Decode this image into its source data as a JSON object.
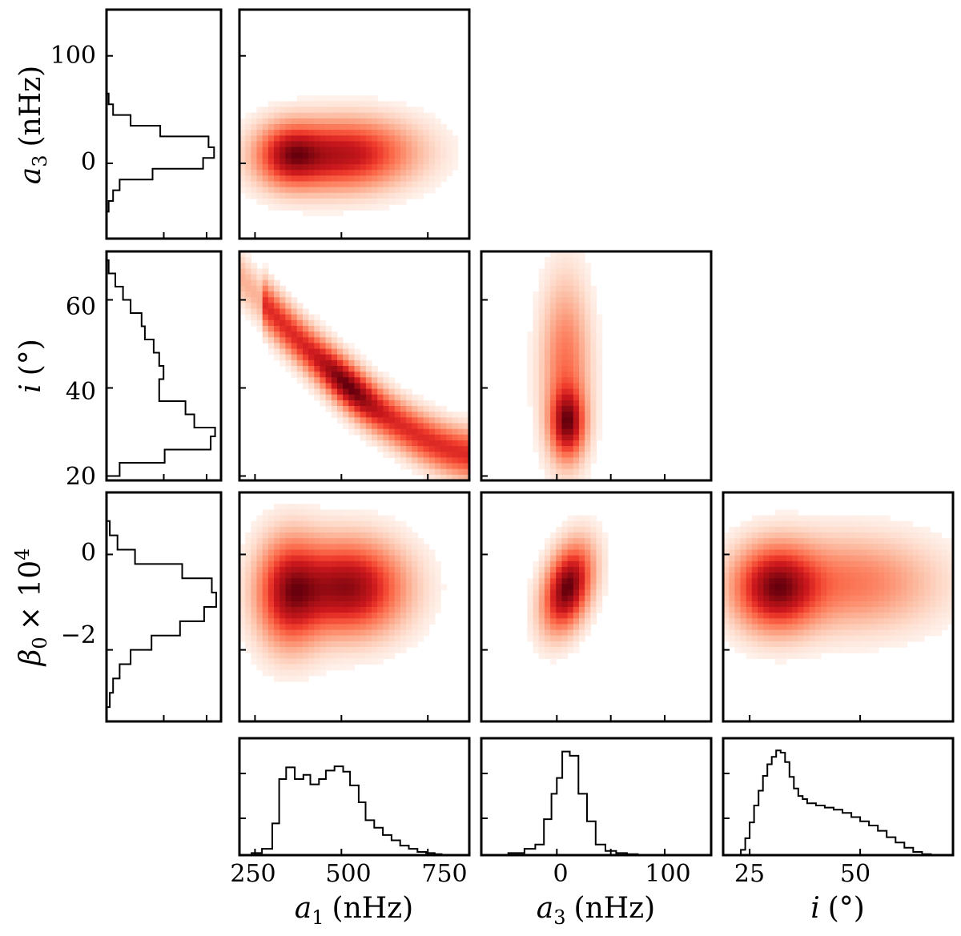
{
  "chart_data": {
    "type": "corner",
    "parameters": [
      {
        "label": "a",
        "sub": "1",
        "unit": "(nHz)",
        "range": [
          205,
          870
        ],
        "ticks": [
          250,
          500,
          750
        ]
      },
      {
        "label": "a",
        "sub": "3",
        "unit": "(nHz)",
        "range": [
          -70,
          143
        ],
        "ticks": [
          0,
          50,
          100
        ],
        "yticks": [
          0,
          100
        ]
      },
      {
        "label": "i",
        "sub": "",
        "unit": "(°)",
        "range": [
          19,
          71
        ],
        "ticks": [
          25,
          50
        ],
        "yticks": [
          20,
          40,
          60
        ]
      },
      {
        "label": "β",
        "sub": "0",
        "unit": "× 10",
        "sup": "4",
        "range": [
          -3.5,
          1.3
        ],
        "yticks": [
          -2,
          0
        ]
      }
    ],
    "tick_labels": {
      "a1_x": [
        "250",
        "500",
        "750"
      ],
      "a3_x": [
        "0",
        "100"
      ],
      "i_x": [
        "25",
        "50"
      ],
      "a3_y": [
        "0",
        "100"
      ],
      "i_y": [
        "20",
        "40",
        "60"
      ],
      "beta_y": [
        "−2",
        "0"
      ]
    },
    "marginals_x": {
      "a1": {
        "edges": [
          205,
          240,
          270,
          300,
          320,
          340,
          365,
          390,
          410,
          435,
          455,
          480,
          505,
          525,
          550,
          570,
          595,
          620,
          645,
          670,
          695,
          720,
          745,
          770,
          790,
          820,
          870
        ],
        "counts": [
          0,
          0.02,
          0.06,
          0.3,
          0.72,
          0.83,
          0.72,
          0.76,
          0.67,
          0.72,
          0.8,
          0.84,
          0.79,
          0.66,
          0.5,
          0.33,
          0.26,
          0.19,
          0.14,
          0.09,
          0.06,
          0.03,
          0.02,
          0.01,
          0.0,
          0.0
        ]
      },
      "a3": {
        "edges": [
          -70,
          -45,
          -30,
          -20,
          -12,
          -5,
          0,
          5,
          12,
          20,
          28,
          36,
          45,
          55,
          65,
          75,
          90,
          143
        ],
        "counts": [
          0,
          0.02,
          0.06,
          0.1,
          0.34,
          0.58,
          0.73,
          0.98,
          0.94,
          0.58,
          0.32,
          0.1,
          0.04,
          0.02,
          0.01,
          0.0,
          0.0
        ]
      },
      "i": {
        "edges": [
          19,
          23,
          24,
          25,
          26,
          27,
          28,
          29,
          30,
          31,
          32,
          33,
          34,
          35,
          36,
          37,
          38,
          40,
          42,
          44,
          46,
          48,
          50,
          52,
          54,
          56,
          58,
          60,
          62,
          64,
          66,
          71
        ],
        "counts": [
          0,
          0.05,
          0.16,
          0.31,
          0.47,
          0.61,
          0.75,
          0.86,
          0.93,
          0.99,
          0.97,
          0.88,
          0.74,
          0.63,
          0.56,
          0.53,
          0.49,
          0.47,
          0.45,
          0.43,
          0.4,
          0.36,
          0.32,
          0.28,
          0.23,
          0.17,
          0.12,
          0.07,
          0.03,
          0.01,
          0.0
        ]
      }
    },
    "marginals_y": {
      "a3": {
        "edges": [
          -70,
          -45,
          -35,
          -25,
          -15,
          -5,
          5,
          15,
          25,
          35,
          45,
          55,
          65,
          143
        ],
        "counts": [
          0,
          0.02,
          0.06,
          0.12,
          0.42,
          0.88,
          0.98,
          0.93,
          0.49,
          0.22,
          0.06,
          0.02,
          0.0
        ]
      },
      "i": {
        "edges": [
          19,
          20,
          23,
          26,
          29,
          31,
          34,
          37,
          40,
          42,
          45,
          48,
          51,
          54,
          57,
          60,
          63,
          66,
          69,
          71
        ],
        "counts": [
          0,
          0.12,
          0.53,
          0.95,
          0.99,
          0.8,
          0.72,
          0.48,
          0.48,
          0.52,
          0.48,
          0.43,
          0.35,
          0.32,
          0.22,
          0.15,
          0.08,
          0.02,
          0.0
        ]
      },
      "beta": {
        "edges": [
          -3.5,
          -3.2,
          -2.9,
          -2.6,
          -2.3,
          -2.0,
          -1.7,
          -1.4,
          -1.1,
          -0.8,
          -0.5,
          -0.2,
          0.1,
          0.4,
          0.7,
          1.0,
          1.3
        ],
        "counts": [
          0,
          0.03,
          0.06,
          0.12,
          0.22,
          0.41,
          0.67,
          0.89,
          1.0,
          0.96,
          0.69,
          0.26,
          0.1,
          0.03,
          0.0,
          0.0
        ]
      }
    },
    "joint_2d": {
      "a1_a3": {
        "blobs": [
          {
            "x": 505,
            "y": 8,
            "sx": 125,
            "sy": 20,
            "w": 1.0,
            "rho": 0.05
          },
          {
            "x": 350,
            "y": 8,
            "sx": 60,
            "sy": 18,
            "w": 0.8,
            "rho": 0.0
          }
        ]
      },
      "a1_i": {
        "curve": "i = 25 + 32*((870-a1)/570)^1.5",
        "width": 3.5
      },
      "a3_i": {
        "blobs": [
          {
            "x": 10,
            "y": 32,
            "sx": 10,
            "sy": 5,
            "w": 1.0,
            "rho": 0.0
          },
          {
            "x": 8,
            "y": 45,
            "sx": 14,
            "sy": 12,
            "w": 0.45,
            "rho": 0.0
          }
        ]
      },
      "a1_beta": {
        "blobs": [
          {
            "x": 520,
            "y": -0.7,
            "sx": 100,
            "sy": 0.6,
            "w": 1.0,
            "rho": 0.0
          },
          {
            "x": 350,
            "y": -0.8,
            "sx": 60,
            "sy": 0.7,
            "w": 0.85,
            "rho": 0.0
          }
        ]
      },
      "a3_beta": {
        "blobs": [
          {
            "x": 10,
            "y": -0.7,
            "sx": 14,
            "sy": 0.55,
            "w": 1.0,
            "rho": 0.35
          }
        ]
      },
      "i_beta": {
        "blobs": [
          {
            "x": 31,
            "y": -0.7,
            "sx": 6,
            "sy": 0.55,
            "w": 1.0,
            "rho": 0.0
          },
          {
            "x": 48,
            "y": -0.6,
            "sx": 12,
            "sy": 0.6,
            "w": 0.4,
            "rho": 0.0
          }
        ]
      }
    },
    "colormap": [
      "#ffffff",
      "#fee0d2",
      "#fcbba1",
      "#fc9272",
      "#fb6a4a",
      "#ef3b2c",
      "#cb181d",
      "#a50f15",
      "#67000d"
    ]
  }
}
